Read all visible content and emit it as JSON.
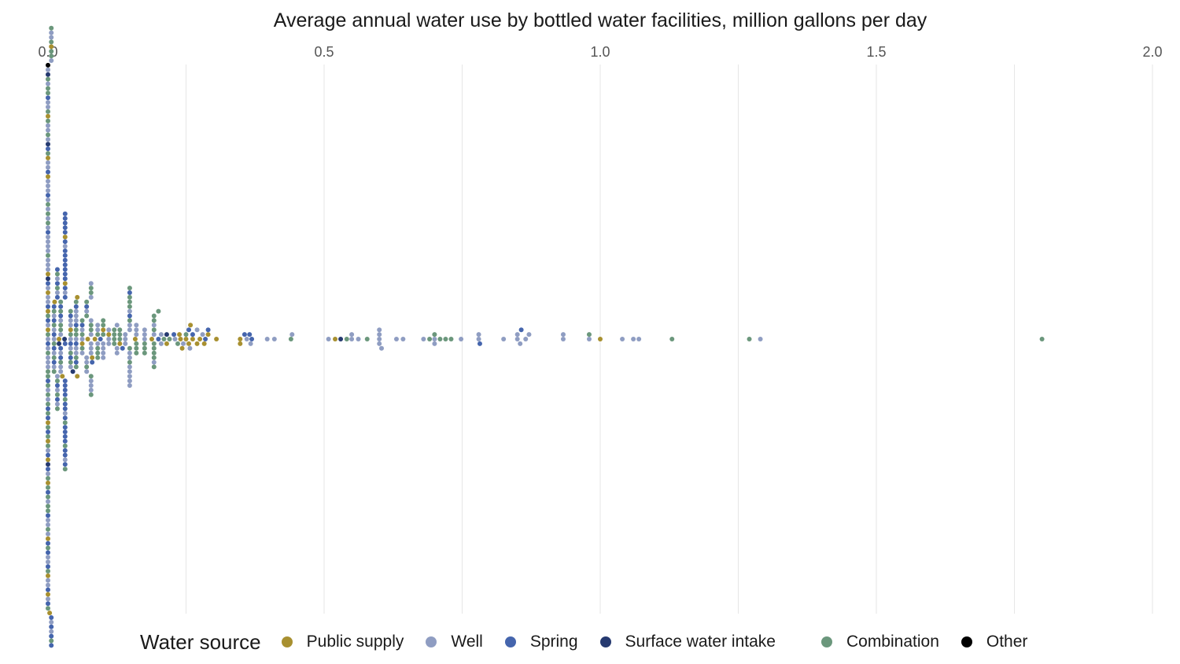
{
  "chart_data": {
    "type": "scatter",
    "subtype": "beeswarm",
    "title": "Average annual water use by bottled water facilities, million gallons per day",
    "xlim": [
      0,
      2.0
    ],
    "x_ticks": [
      "0.0",
      "0.5",
      "1.0",
      "1.5",
      "2.0"
    ],
    "x_tick_values": [
      0,
      0.5,
      1.0,
      1.5,
      2.0
    ],
    "grid_step": 0.25,
    "x_axis_position": "top",
    "grid": true,
    "legend_title": "Water source",
    "legend_position": "bottom",
    "point_format": "[value, count]",
    "series": [
      {
        "name": "Public supply",
        "color": "#a89030",
        "points": [
          [
            0,
            14
          ],
          [
            0.003,
            1
          ],
          [
            0.006,
            1
          ],
          [
            0.012,
            1
          ],
          [
            0.02,
            1
          ],
          [
            0.026,
            1
          ],
          [
            0.031,
            2
          ],
          [
            0.041,
            1
          ],
          [
            0.053,
            2
          ],
          [
            0.062,
            1
          ],
          [
            0.072,
            1
          ],
          [
            0.08,
            1
          ],
          [
            0.085,
            1
          ],
          [
            0.1,
            1
          ],
          [
            0.11,
            1
          ],
          [
            0.13,
            1
          ],
          [
            0.158,
            1
          ],
          [
            0.188,
            1
          ],
          [
            0.215,
            1
          ],
          [
            0.238,
            1
          ],
          [
            0.24,
            1
          ],
          [
            0.243,
            1
          ],
          [
            0.25,
            1
          ],
          [
            0.255,
            1
          ],
          [
            0.258,
            1
          ],
          [
            0.262,
            1
          ],
          [
            0.27,
            1
          ],
          [
            0.275,
            1
          ],
          [
            0.283,
            1
          ],
          [
            0.29,
            1
          ],
          [
            0.305,
            1
          ],
          [
            0.348,
            2
          ],
          [
            0.52,
            1
          ],
          [
            1.0,
            1
          ]
        ]
      },
      {
        "name": "Well",
        "color": "#8f9dc2",
        "points": [
          [
            0,
            45
          ],
          [
            0.006,
            5
          ],
          [
            0.011,
            5
          ],
          [
            0.017,
            5
          ],
          [
            0.023,
            5
          ],
          [
            0.031,
            4
          ],
          [
            0.041,
            5
          ],
          [
            0.051,
            6
          ],
          [
            0.062,
            3
          ],
          [
            0.07,
            4
          ],
          [
            0.078,
            10
          ],
          [
            0.09,
            3
          ],
          [
            0.1,
            4
          ],
          [
            0.11,
            3
          ],
          [
            0.125,
            3
          ],
          [
            0.14,
            3
          ],
          [
            0.148,
            10
          ],
          [
            0.16,
            3
          ],
          [
            0.175,
            3
          ],
          [
            0.192,
            3
          ],
          [
            0.205,
            2
          ],
          [
            0.23,
            1
          ],
          [
            0.245,
            1
          ],
          [
            0.257,
            1
          ],
          [
            0.27,
            1
          ],
          [
            0.28,
            1
          ],
          [
            0.36,
            1
          ],
          [
            0.367,
            1
          ],
          [
            0.397,
            1
          ],
          [
            0.41,
            1
          ],
          [
            0.442,
            1
          ],
          [
            0.508,
            1
          ],
          [
            0.55,
            2
          ],
          [
            0.562,
            1
          ],
          [
            0.6,
            4
          ],
          [
            0.604,
            1
          ],
          [
            0.631,
            1
          ],
          [
            0.643,
            1
          ],
          [
            0.68,
            1
          ],
          [
            0.7,
            2
          ],
          [
            0.748,
            1
          ],
          [
            0.78,
            2
          ],
          [
            0.825,
            1
          ],
          [
            0.85,
            2
          ],
          [
            0.855,
            1
          ],
          [
            0.865,
            1
          ],
          [
            0.871,
            1
          ],
          [
            0.933,
            2
          ],
          [
            0.98,
            1
          ],
          [
            1.04,
            1
          ],
          [
            1.06,
            1
          ],
          [
            1.07,
            1
          ],
          [
            1.29,
            1
          ]
        ]
      },
      {
        "name": "Spring",
        "color": "#4565ad",
        "points": [
          [
            0,
            22
          ],
          [
            0.006,
            4
          ],
          [
            0.011,
            5
          ],
          [
            0.017,
            5
          ],
          [
            0.023,
            4
          ],
          [
            0.031,
            30
          ],
          [
            0.041,
            3
          ],
          [
            0.051,
            4
          ],
          [
            0.062,
            1
          ],
          [
            0.07,
            1
          ],
          [
            0.08,
            1
          ],
          [
            0.095,
            1
          ],
          [
            0.135,
            1
          ],
          [
            0.148,
            2
          ],
          [
            0.2,
            1
          ],
          [
            0.228,
            1
          ],
          [
            0.255,
            1
          ],
          [
            0.262,
            1
          ],
          [
            0.285,
            1
          ],
          [
            0.29,
            1
          ],
          [
            0.356,
            1
          ],
          [
            0.365,
            1
          ],
          [
            0.369,
            1
          ],
          [
            0.782,
            1
          ],
          [
            0.857,
            1
          ]
        ]
      },
      {
        "name": "Surface water intake",
        "color": "#263a70",
        "points": [
          [
            0,
            4
          ],
          [
            0.02,
            1
          ],
          [
            0.03,
            1
          ],
          [
            0.045,
            1
          ],
          [
            0.215,
            1
          ],
          [
            0.53,
            1
          ]
        ]
      },
      {
        "name": "Combination",
        "color": "#6b977c",
        "points": [
          [
            0,
            32
          ],
          [
            0.006,
            5
          ],
          [
            0.011,
            5
          ],
          [
            0.017,
            5
          ],
          [
            0.023,
            5
          ],
          [
            0.031,
            4
          ],
          [
            0.041,
            4
          ],
          [
            0.051,
            5
          ],
          [
            0.062,
            3
          ],
          [
            0.07,
            3
          ],
          [
            0.078,
            6
          ],
          [
            0.09,
            4
          ],
          [
            0.1,
            3
          ],
          [
            0.12,
            4
          ],
          [
            0.13,
            3
          ],
          [
            0.148,
            7
          ],
          [
            0.16,
            3
          ],
          [
            0.175,
            3
          ],
          [
            0.192,
            8
          ],
          [
            0.2,
            1
          ],
          [
            0.21,
            1
          ],
          [
            0.22,
            1
          ],
          [
            0.235,
            1
          ],
          [
            0.25,
            1
          ],
          [
            0.44,
            1
          ],
          [
            0.541,
            1
          ],
          [
            0.578,
            1
          ],
          [
            0.691,
            1
          ],
          [
            0.7,
            1
          ],
          [
            0.71,
            1
          ],
          [
            0.72,
            1
          ],
          [
            0.73,
            1
          ],
          [
            0.98,
            1
          ],
          [
            1.13,
            1
          ],
          [
            1.27,
            1
          ],
          [
            1.8,
            1
          ]
        ]
      },
      {
        "name": "Other",
        "color": "#000000",
        "points": [
          [
            0,
            1
          ]
        ]
      }
    ]
  }
}
